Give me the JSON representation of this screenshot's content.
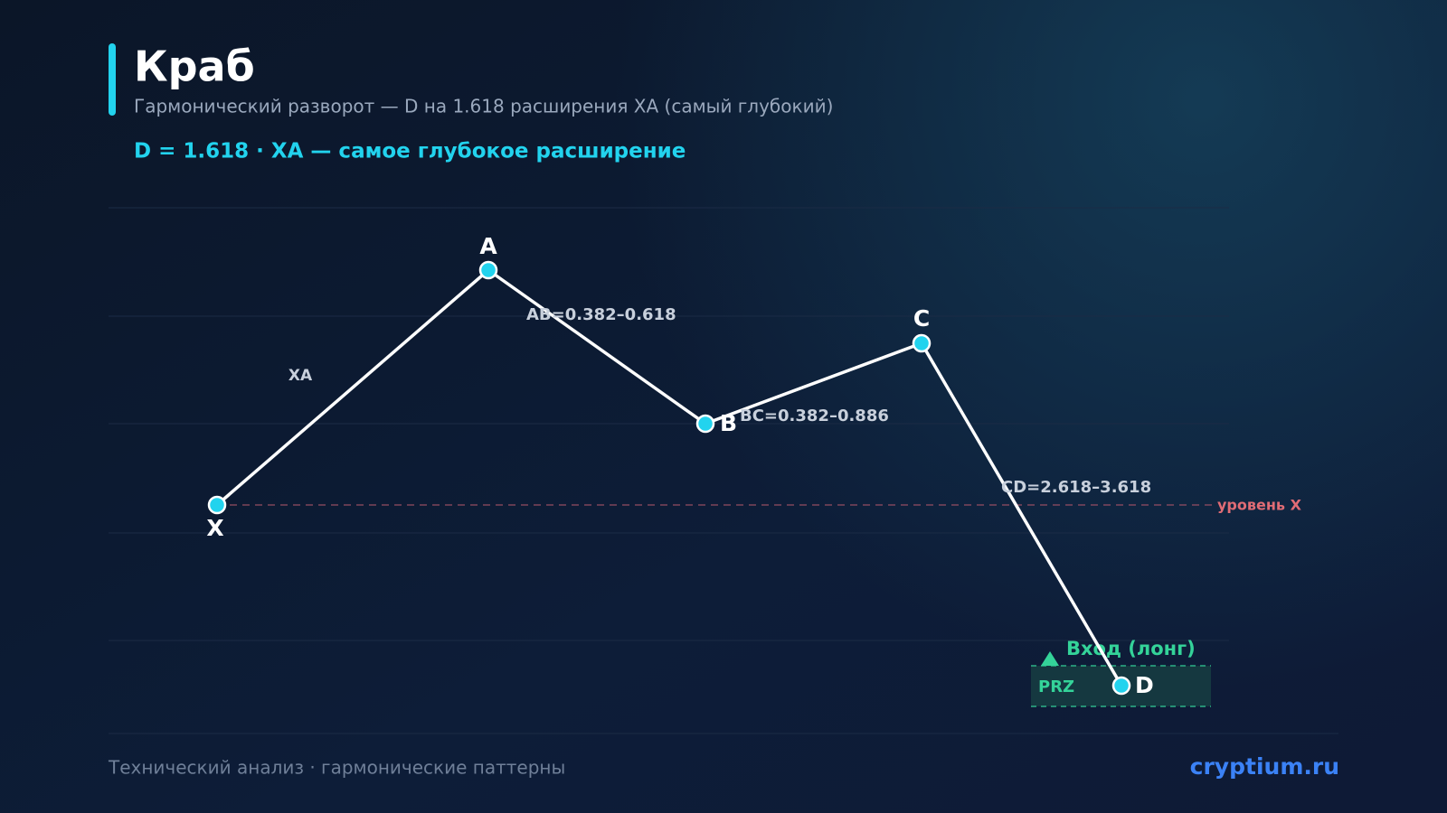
{
  "header": {
    "title": "Краб",
    "subtitle": "Гармонический разворот — D на 1.618 расширения XA (самый глубокий)",
    "formula": "D = 1.618 · XA — самое глубокое расширение"
  },
  "points": [
    {
      "label": "X"
    },
    {
      "label": "A"
    },
    {
      "label": "B"
    },
    {
      "label": "C"
    },
    {
      "label": "D"
    }
  ],
  "legs": [
    {
      "label": "XA"
    },
    {
      "label": "AB=0.382–0.618"
    },
    {
      "label": "BC=0.382–0.886"
    },
    {
      "label": "CD=2.618–3.618"
    }
  ],
  "x_level": {
    "label": "уровень X"
  },
  "prz": {
    "label": "PRZ",
    "entry": "Вход (лонг)"
  },
  "footer": {
    "left": "Технический анализ · гармонические паттерны",
    "right": "cryptium.ru"
  }
}
